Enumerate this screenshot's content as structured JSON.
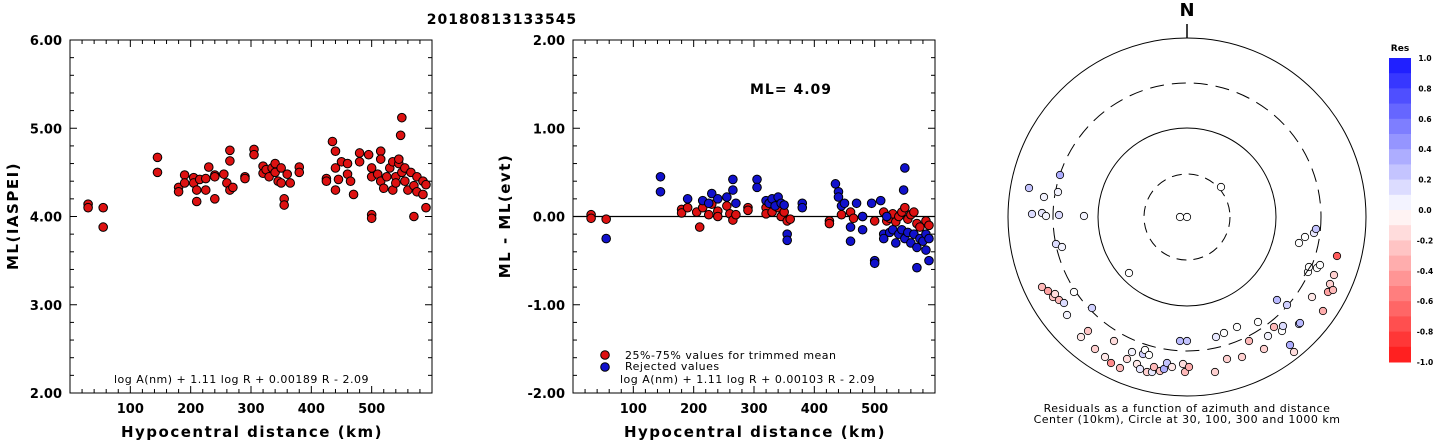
{
  "title": "20180813133545",
  "chart_data": [
    {
      "type": "scatter",
      "xlabel": "Hypocentral distance (km)",
      "ylabel": "ML(IASPEI)",
      "xlim": [
        0,
        600
      ],
      "ylim": [
        2.0,
        6.0
      ],
      "xticks": [
        "100",
        "200",
        "300",
        "400",
        "500"
      ],
      "yticks": [
        "2.00",
        "3.00",
        "4.00",
        "5.00",
        "6.00"
      ],
      "formula": "log A(nm) + 1.11 log R + 0.00189 R - 2.09",
      "point_color": "#dd1111",
      "points": [
        [
          30,
          4.14
        ],
        [
          30,
          4.1
        ],
        [
          55,
          4.1
        ],
        [
          55,
          3.88
        ],
        [
          145,
          4.67
        ],
        [
          145,
          4.5
        ],
        [
          180,
          4.33
        ],
        [
          180,
          4.28
        ],
        [
          190,
          4.47
        ],
        [
          190,
          4.38
        ],
        [
          205,
          4.44
        ],
        [
          205,
          4.38
        ],
        [
          210,
          4.3
        ],
        [
          210,
          4.17
        ],
        [
          215,
          4.42
        ],
        [
          225,
          4.43
        ],
        [
          225,
          4.3
        ],
        [
          230,
          4.56
        ],
        [
          240,
          4.47
        ],
        [
          240,
          4.45
        ],
        [
          240,
          4.2
        ],
        [
          255,
          4.48
        ],
        [
          260,
          4.38
        ],
        [
          265,
          4.75
        ],
        [
          265,
          4.63
        ],
        [
          265,
          4.3
        ],
        [
          270,
          4.33
        ],
        [
          290,
          4.45
        ],
        [
          290,
          4.43
        ],
        [
          305,
          4.76
        ],
        [
          305,
          4.7
        ],
        [
          320,
          4.57
        ],
        [
          320,
          4.49
        ],
        [
          325,
          4.53
        ],
        [
          330,
          4.45
        ],
        [
          335,
          4.55
        ],
        [
          340,
          4.6
        ],
        [
          340,
          4.5
        ],
        [
          345,
          4.4
        ],
        [
          350,
          4.55
        ],
        [
          350,
          4.38
        ],
        [
          355,
          4.2
        ],
        [
          355,
          4.13
        ],
        [
          360,
          4.48
        ],
        [
          365,
          4.38
        ],
        [
          380,
          4.56
        ],
        [
          380,
          4.5
        ],
        [
          425,
          4.43
        ],
        [
          425,
          4.4
        ],
        [
          435,
          4.85
        ],
        [
          440,
          4.74
        ],
        [
          440,
          4.55
        ],
        [
          440,
          4.3
        ],
        [
          445,
          4.42
        ],
        [
          450,
          4.62
        ],
        [
          460,
          4.6
        ],
        [
          460,
          4.48
        ],
        [
          465,
          4.4
        ],
        [
          470,
          4.25
        ],
        [
          480,
          4.72
        ],
        [
          480,
          4.62
        ],
        [
          495,
          4.7
        ],
        [
          500,
          4.55
        ],
        [
          500,
          4.45
        ],
        [
          500,
          4.02
        ],
        [
          500,
          3.98
        ],
        [
          510,
          4.48
        ],
        [
          515,
          4.74
        ],
        [
          515,
          4.65
        ],
        [
          515,
          4.4
        ],
        [
          520,
          4.32
        ],
        [
          525,
          4.45
        ],
        [
          530,
          4.55
        ],
        [
          535,
          4.62
        ],
        [
          535,
          4.3
        ],
        [
          540,
          4.45
        ],
        [
          540,
          4.38
        ],
        [
          545,
          4.6
        ],
        [
          545,
          4.65
        ],
        [
          548,
          4.92
        ],
        [
          550,
          4.5
        ],
        [
          550,
          5.12
        ],
        [
          555,
          4.55
        ],
        [
          555,
          4.4
        ],
        [
          560,
          4.3
        ],
        [
          565,
          4.5
        ],
        [
          570,
          4.35
        ],
        [
          570,
          4.0
        ],
        [
          575,
          4.45
        ],
        [
          575,
          4.28
        ],
        [
          585,
          4.4
        ],
        [
          585,
          4.25
        ],
        [
          590,
          4.36
        ],
        [
          590,
          4.1
        ]
      ]
    },
    {
      "type": "scatter",
      "xlabel": "Hypocentral distance (km)",
      "ylabel": "ML - ML(evt)",
      "xlim": [
        0,
        600
      ],
      "ylim": [
        -2.0,
        2.0
      ],
      "xticks": [
        "100",
        "200",
        "300",
        "400",
        "500"
      ],
      "yticks": [
        "-2.00",
        "-1.00",
        "0.00",
        "1.00",
        "2.00"
      ],
      "ml_label": "ML= 4.09",
      "formula": "log A(nm) + 1.11 log R + 0.00103 R - 2.09",
      "legend": [
        {
          "label": "25%-75% values for trimmed mean",
          "color": "#dd1111"
        },
        {
          "label": "Rejected values",
          "color": "#1111cc"
        }
      ],
      "trimmed": [
        [
          30,
          0.02
        ],
        [
          30,
          -0.02
        ],
        [
          55,
          -0.03
        ],
        [
          180,
          0.08
        ],
        [
          180,
          0.04
        ],
        [
          190,
          0.1
        ],
        [
          205,
          0.05
        ],
        [
          210,
          -0.12
        ],
        [
          215,
          0.1
        ],
        [
          225,
          0.02
        ],
        [
          230,
          0.14
        ],
        [
          240,
          0.06
        ],
        [
          240,
          0.0
        ],
        [
          255,
          0.12
        ],
        [
          260,
          0.03
        ],
        [
          265,
          -0.04
        ],
        [
          270,
          0.02
        ],
        [
          290,
          0.1
        ],
        [
          290,
          0.07
        ],
        [
          320,
          0.1
        ],
        [
          320,
          0.03
        ],
        [
          330,
          0.05
        ],
        [
          340,
          0.1
        ],
        [
          345,
          0.0
        ],
        [
          350,
          0.05
        ],
        [
          355,
          -0.05
        ],
        [
          360,
          -0.03
        ],
        [
          425,
          -0.05
        ],
        [
          425,
          -0.08
        ],
        [
          445,
          0.02
        ],
        [
          460,
          0.05
        ],
        [
          465,
          -0.02
        ],
        [
          480,
          0.0
        ],
        [
          500,
          -0.05
        ],
        [
          515,
          0.05
        ],
        [
          520,
          -0.05
        ],
        [
          525,
          -0.02
        ],
        [
          530,
          0.03
        ],
        [
          535,
          -0.06
        ],
        [
          540,
          0.0
        ],
        [
          545,
          0.05
        ],
        [
          550,
          0.1
        ],
        [
          555,
          -0.03
        ],
        [
          560,
          0.02
        ],
        [
          565,
          0.05
        ],
        [
          570,
          -0.08
        ],
        [
          575,
          -0.12
        ],
        [
          585,
          -0.05
        ],
        [
          590,
          -0.1
        ]
      ],
      "rejected": [
        [
          55,
          -0.25
        ],
        [
          145,
          0.45
        ],
        [
          145,
          0.28
        ],
        [
          190,
          0.2
        ],
        [
          215,
          0.18
        ],
        [
          225,
          0.15
        ],
        [
          230,
          0.26
        ],
        [
          240,
          0.2
        ],
        [
          255,
          0.22
        ],
        [
          265,
          0.42
        ],
        [
          265,
          0.3
        ],
        [
          270,
          0.15
        ],
        [
          305,
          0.42
        ],
        [
          305,
          0.33
        ],
        [
          320,
          0.18
        ],
        [
          325,
          0.15
        ],
        [
          330,
          0.2
        ],
        [
          335,
          0.12
        ],
        [
          340,
          0.22
        ],
        [
          345,
          0.15
        ],
        [
          350,
          0.13
        ],
        [
          355,
          -0.2
        ],
        [
          355,
          -0.27
        ],
        [
          380,
          0.15
        ],
        [
          380,
          0.1
        ],
        [
          435,
          0.37
        ],
        [
          440,
          0.28
        ],
        [
          440,
          0.22
        ],
        [
          445,
          0.12
        ],
        [
          450,
          0.15
        ],
        [
          460,
          -0.12
        ],
        [
          460,
          -0.28
        ],
        [
          470,
          0.15
        ],
        [
          480,
          0.0
        ],
        [
          480,
          -0.15
        ],
        [
          495,
          0.15
        ],
        [
          500,
          -0.5
        ],
        [
          500,
          -0.53
        ],
        [
          510,
          0.18
        ],
        [
          515,
          -0.2
        ],
        [
          515,
          -0.25
        ],
        [
          520,
          0.0
        ],
        [
          525,
          -0.18
        ],
        [
          530,
          -0.15
        ],
        [
          535,
          -0.3
        ],
        [
          540,
          -0.2
        ],
        [
          545,
          -0.15
        ],
        [
          548,
          0.3
        ],
        [
          550,
          0.55
        ],
        [
          550,
          -0.25
        ],
        [
          555,
          -0.18
        ],
        [
          560,
          -0.3
        ],
        [
          565,
          -0.2
        ],
        [
          570,
          -0.35
        ],
        [
          570,
          -0.58
        ],
        [
          575,
          -0.25
        ],
        [
          580,
          -0.28
        ],
        [
          585,
          -0.2
        ],
        [
          585,
          -0.38
        ],
        [
          590,
          -0.5
        ],
        [
          590,
          -0.25
        ]
      ]
    },
    {
      "type": "scatter",
      "north_label": "N",
      "caption_1": "Residuals as a function of azimuth and distance",
      "caption_2": "Center (10km), Circle at 30, 100, 300 and 1000 km",
      "colorbar_title": "Res",
      "colorbar_labels": [
        "1.0",
        "0.8",
        "0.6",
        "0.4",
        "0.2",
        "0.0",
        "-0.2",
        "-0.4",
        "-0.6",
        "-0.8",
        "-1.0"
      ],
      "colorbar_range": [
        -1.0,
        1.0
      ],
      "stations_offset": [
        [
          -158,
          -29,
          0.25
        ],
        [
          -155,
          -3,
          0.15
        ],
        [
          -145,
          -4,
          0.1
        ],
        [
          -143,
          -20,
          0.05
        ],
        [
          -141,
          -1,
          0.05
        ],
        [
          -127,
          -42,
          0.35
        ],
        [
          -131,
          27,
          0.15
        ],
        [
          -145,
          70,
          -0.3
        ],
        [
          -139,
          74,
          -0.4
        ],
        [
          -134,
          80,
          -0.25
        ],
        [
          -132,
          77,
          -0.15
        ],
        [
          -128,
          83,
          -0.3
        ],
        [
          -123,
          86,
          0.15
        ],
        [
          -120,
          98,
          0.05
        ],
        [
          -113,
          75,
          0.0
        ],
        [
          -106,
          120,
          -0.1
        ],
        [
          -99,
          114,
          -0.25
        ],
        [
          -95,
          91,
          0.2
        ],
        [
          -92,
          132,
          -0.2
        ],
        [
          -82,
          140,
          -0.1
        ],
        [
          -76,
          146,
          -0.5
        ],
        [
          -73,
          124,
          -0.15
        ],
        [
          -67,
          151,
          -0.3
        ],
        [
          -60,
          142,
          -0.15
        ],
        [
          -55,
          135,
          0.05
        ],
        [
          -50,
          147,
          -0.1
        ],
        [
          -47,
          152,
          0.1
        ],
        [
          -44,
          137,
          0.2
        ],
        [
          -40,
          155,
          -0.2
        ],
        [
          -35,
          155,
          0.1
        ],
        [
          -33,
          150,
          -0.3
        ],
        [
          -27,
          154,
          -0.25
        ],
        [
          -23,
          152,
          0.35
        ],
        [
          -20,
          146,
          0.25
        ],
        [
          -42,
          133,
          0.0
        ],
        [
          -38,
          138,
          0.0
        ],
        [
          -7,
          124,
          0.3
        ],
        [
          0,
          124,
          0.25
        ],
        [
          -15,
          150,
          -0.1
        ],
        [
          -4,
          147,
          -0.15
        ],
        [
          -2,
          155,
          -0.3
        ],
        [
          2,
          150,
          -0.35
        ],
        [
          28,
          155,
          -0.2
        ],
        [
          29,
          120,
          0.1
        ],
        [
          37,
          116,
          0.0
        ],
        [
          40,
          142,
          -0.2
        ],
        [
          50,
          110,
          0.0
        ],
        [
          55,
          140,
          -0.2
        ],
        [
          62,
          124,
          -0.3
        ],
        [
          71,
          105,
          0.0
        ],
        [
          77,
          132,
          -0.2
        ],
        [
          81,
          119,
          0.05
        ],
        [
          87,
          110,
          -0.3
        ],
        [
          90,
          83,
          0.3
        ],
        [
          95,
          114,
          0.0
        ],
        [
          96,
          109,
          0.15
        ],
        [
          100,
          88,
          0.2
        ],
        [
          103,
          128,
          0.35
        ],
        [
          107,
          135,
          -0.15
        ],
        [
          112,
          107,
          0.25
        ],
        [
          113,
          106,
          0.3
        ],
        [
          125,
          80,
          -0.1
        ],
        [
          130,
          51,
          0.0
        ],
        [
          133,
          48,
          0.0
        ],
        [
          136,
          94,
          -0.35
        ],
        [
          143,
          67,
          -0.2
        ],
        [
          141,
          75,
          -0.4
        ],
        [
          146,
          73,
          -0.3
        ],
        [
          147,
          58,
          -0.2
        ],
        [
          150,
          39,
          -0.7
        ],
        [
          121,
          55,
          0.0
        ],
        [
          122,
          50,
          0.0
        ],
        [
          112,
          26,
          0.0
        ],
        [
          118,
          20,
          0.0
        ],
        [
          127,
          16,
          0.1
        ],
        [
          129,
          12,
          0.25
        ],
        [
          -125,
          30,
          0.05
        ],
        [
          -103,
          -1,
          0.05
        ],
        [
          -128,
          -2,
          0.15
        ],
        [
          -129,
          -25,
          0.05
        ],
        [
          -58,
          56,
          0.0
        ],
        [
          0,
          0,
          0.0
        ],
        [
          34,
          -30,
          0.0
        ],
        [
          -7,
          0,
          0.0
        ]
      ]
    }
  ]
}
